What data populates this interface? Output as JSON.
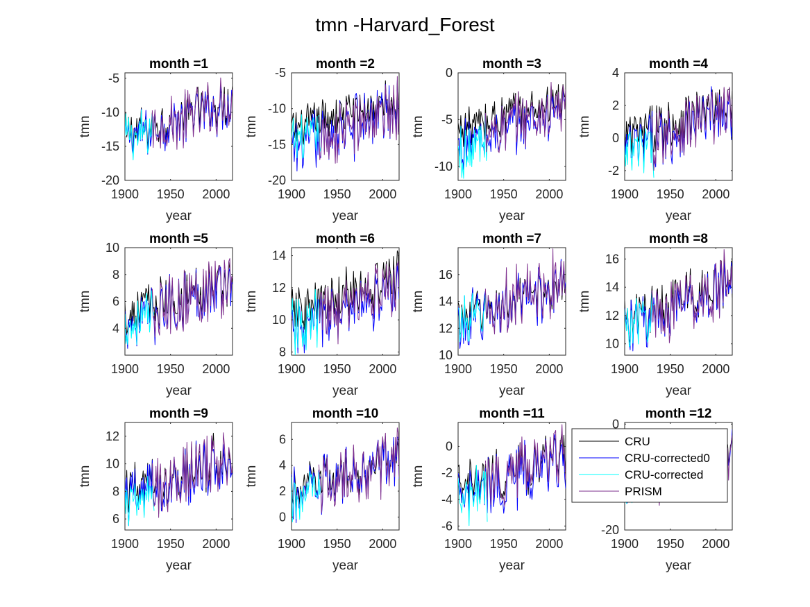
{
  "figure": {
    "title": "tmn -Harvard_Forest"
  },
  "chart_data": {
    "type": "line",
    "title": "tmn -Harvard_Forest",
    "xlabel": "year",
    "ylabel": "tmn",
    "xlim": [
      1900,
      2018
    ],
    "x_ticks": [
      1900,
      1950,
      2000
    ],
    "legend": {
      "placement": "over panel month =12",
      "entries": [
        "CRU",
        "CRU-corrected0",
        "CRU-corrected",
        "PRISM"
      ]
    },
    "series_styles": [
      {
        "name": "CRU",
        "color": "#000000"
      },
      {
        "name": "CRU-corrected0",
        "color": "#0000ff"
      },
      {
        "name": "CRU-corrected",
        "color": "#00ffff"
      },
      {
        "name": "PRISM",
        "color": "#7e2f8e"
      }
    ],
    "panels": [
      {
        "title": "month =1",
        "ylim": [
          -20,
          -4.2
        ],
        "yticks": [
          -20,
          -15,
          -10,
          -5
        ],
        "ranges": {
          "CRU": [
            -16,
            -5
          ],
          "CRU-corrected0": [
            -17,
            -5
          ],
          "CRU-corrected": [
            -17,
            -5.5
          ],
          "PRISM": [
            -17.5,
            -4.5
          ]
        }
      },
      {
        "title": "month =2",
        "ylim": [
          -20,
          -5
        ],
        "yticks": [
          -20,
          -15,
          -10,
          -5
        ],
        "ranges": {
          "CRU": [
            -15,
            -6
          ],
          "CRU-corrected0": [
            -19.5,
            -5.5
          ],
          "CRU-corrected": [
            -17.5,
            -7
          ],
          "PRISM": [
            -19.5,
            -5.5
          ]
        }
      },
      {
        "title": "month =3",
        "ylim": [
          -11.5,
          0
        ],
        "yticks": [
          -10,
          -5,
          0
        ],
        "ranges": {
          "CRU": [
            -8,
            -0.5
          ],
          "CRU-corrected0": [
            -10.5,
            -1
          ],
          "CRU-corrected": [
            -11.5,
            -1
          ],
          "PRISM": [
            -10,
            -0.5
          ]
        }
      },
      {
        "title": "month =4",
        "ylim": [
          -2.6,
          4
        ],
        "yticks": [
          -2,
          0,
          2,
          4
        ],
        "ranges": {
          "CRU": [
            -1.5,
            3.8
          ],
          "CRU-corrected0": [
            -2.3,
            3.5
          ],
          "CRU-corrected": [
            -2.6,
            3
          ],
          "PRISM": [
            -2.3,
            3.7
          ]
        }
      },
      {
        "title": "month =5",
        "ylim": [
          2,
          10
        ],
        "yticks": [
          4,
          6,
          8,
          10
        ],
        "ranges": {
          "CRU": [
            3.5,
            9.5
          ],
          "CRU-corrected0": [
            2.5,
            9.5
          ],
          "CRU-corrected": [
            2.8,
            8.5
          ],
          "PRISM": [
            2.3,
            10
          ]
        }
      },
      {
        "title": "month =6",
        "ylim": [
          7.8,
          14.5
        ],
        "yticks": [
          8,
          10,
          12,
          14
        ],
        "ranges": {
          "CRU": [
            9,
            14.3
          ],
          "CRU-corrected0": [
            7.9,
            13.5
          ],
          "CRU-corrected": [
            7.8,
            13.7
          ],
          "PRISM": [
            8,
            14
          ]
        }
      },
      {
        "title": "month =7",
        "ylim": [
          10,
          18
        ],
        "yticks": [
          10,
          12,
          14,
          16
        ],
        "ranges": {
          "CRU": [
            11.5,
            17
          ],
          "CRU-corrected0": [
            10.5,
            17.5
          ],
          "CRU-corrected": [
            11,
            16.5
          ],
          "PRISM": [
            10.3,
            18
          ]
        }
      },
      {
        "title": "month =8",
        "ylim": [
          9.2,
          16.8
        ],
        "yticks": [
          10,
          12,
          14,
          16
        ],
        "ranges": {
          "CRU": [
            10,
            16.5
          ],
          "CRU-corrected0": [
            9.5,
            16
          ],
          "CRU-corrected": [
            9.8,
            15.5
          ],
          "PRISM": [
            9.3,
            16.7
          ]
        }
      },
      {
        "title": "month =9",
        "ylim": [
          5.2,
          13
        ],
        "yticks": [
          6,
          8,
          10,
          12
        ],
        "ranges": {
          "CRU": [
            6,
            12.5
          ],
          "CRU-corrected0": [
            5.4,
            12.5
          ],
          "CRU-corrected": [
            5.5,
            11
          ],
          "PRISM": [
            5.5,
            13
          ]
        }
      },
      {
        "title": "month =10",
        "ylim": [
          -1,
          7.3
        ],
        "yticks": [
          0,
          2,
          4,
          6
        ],
        "ranges": {
          "CRU": [
            0.5,
            6.5
          ],
          "CRU-corrected0": [
            -0.5,
            7
          ],
          "CRU-corrected": [
            -0.5,
            6.5
          ],
          "PRISM": [
            -0.8,
            7.2
          ]
        }
      },
      {
        "title": "month =11",
        "ylim": [
          -6.3,
          1.8
        ],
        "yticks": [
          -6,
          -4,
          -2,
          0
        ],
        "ranges": {
          "CRU": [
            -5,
            1.5
          ],
          "CRU-corrected0": [
            -6,
            1.5
          ],
          "CRU-corrected": [
            -6.3,
            1
          ],
          "PRISM": [
            -5.5,
            1.8
          ]
        }
      },
      {
        "title": "month =12",
        "ylim": [
          -20,
          0.3
        ],
        "yticks": [
          -20,
          0
        ],
        "ranges": {
          "CRU": [
            -12,
            -1
          ],
          "CRU-corrected0": [
            -15,
            -1
          ],
          "CRU-corrected": [
            -15,
            -1
          ],
          "PRISM": [
            -16.5,
            0
          ]
        }
      }
    ]
  }
}
